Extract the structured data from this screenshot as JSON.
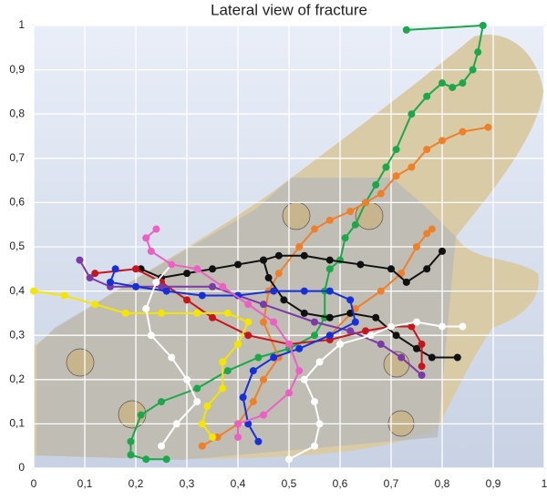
{
  "chart_data": {
    "type": "line",
    "title": "Lateral view of fracture",
    "xlim": [
      0,
      1
    ],
    "ylim": [
      0,
      1
    ],
    "grid": true,
    "xticks": [
      0,
      {
        "value": 0.1,
        "label": "0,1"
      },
      {
        "value": 0.2,
        "label": "0,2"
      },
      {
        "value": 0.3,
        "label": "0,3"
      },
      {
        "value": 0.4,
        "label": "0,4"
      },
      {
        "value": 0.5,
        "label": "0,5"
      },
      {
        "value": 0.6,
        "label": "0,6"
      },
      {
        "value": 0.7,
        "label": "0,7"
      },
      {
        "value": 0.8,
        "label": "0,8"
      },
      {
        "value": 0.9,
        "label": "0,9"
      },
      1
    ],
    "yticks": [
      0,
      {
        "value": 0.1,
        "label": "0,1"
      },
      {
        "value": 0.2,
        "label": "0,2"
      },
      {
        "value": 0.3,
        "label": "0,3"
      },
      {
        "value": 0.4,
        "label": "0,4"
      },
      {
        "value": 0.5,
        "label": "0,5"
      },
      {
        "value": 0.6,
        "label": "0,6"
      },
      {
        "value": 0.7,
        "label": "0,7"
      },
      {
        "value": 0.8,
        "label": "0,8"
      },
      {
        "value": 0.9,
        "label": "0,9"
      },
      1
    ],
    "series": [
      {
        "color": "#1aa84a",
        "x": [
          0.73,
          0.88,
          0.87,
          0.86,
          0.84,
          0.82,
          0.8,
          0.77,
          0.74,
          0.71,
          0.69,
          0.67,
          0.65,
          0.63,
          0.61,
          0.6,
          0.58,
          0.57,
          0.57,
          0.55,
          0.5,
          0.44,
          0.38,
          0.32,
          0.25,
          0.21,
          0.19,
          0.19,
          0.22,
          0.26
        ],
        "values": [
          0.99,
          1.0,
          0.94,
          0.9,
          0.87,
          0.86,
          0.87,
          0.84,
          0.8,
          0.72,
          0.68,
          0.64,
          0.6,
          0.55,
          0.52,
          0.47,
          0.45,
          0.4,
          0.34,
          0.3,
          0.27,
          0.25,
          0.22,
          0.18,
          0.15,
          0.12,
          0.06,
          0.03,
          0.02,
          0.02
        ]
      },
      {
        "color": "#f07f2a",
        "x": [
          0.89,
          0.84,
          0.8,
          0.77,
          0.74,
          0.71,
          0.68,
          0.65,
          0.62,
          0.58,
          0.55,
          0.52,
          0.48,
          0.46,
          0.45,
          0.48,
          0.45,
          0.43,
          0.4,
          0.36,
          0.33
        ],
        "values": [
          0.77,
          0.76,
          0.74,
          0.72,
          0.68,
          0.66,
          0.62,
          0.6,
          0.58,
          0.56,
          0.54,
          0.5,
          0.44,
          0.4,
          0.33,
          0.25,
          0.2,
          0.15,
          0.1,
          0.07,
          0.05
        ]
      },
      {
        "color": "#f07f2a",
        "x": [
          0.78,
          0.77,
          0.75,
          0.72,
          0.68,
          0.63,
          0.58
        ],
        "values": [
          0.54,
          0.53,
          0.5,
          0.44,
          0.4,
          0.36,
          0.3
        ]
      },
      {
        "color": "#111111",
        "x": [
          0.83,
          0.78,
          0.75,
          0.71,
          0.67,
          0.62,
          0.58,
          0.53,
          0.49,
          0.46,
          0.45,
          0.48,
          0.53,
          0.58,
          0.64,
          0.7,
          0.73,
          0.77,
          0.8
        ],
        "values": [
          0.25,
          0.25,
          0.27,
          0.3,
          0.34,
          0.35,
          0.34,
          0.35,
          0.38,
          0.43,
          0.47,
          0.48,
          0.48,
          0.47,
          0.46,
          0.45,
          0.42,
          0.45,
          0.49
        ]
      },
      {
        "color": "#111111",
        "x": [
          0.45,
          0.4,
          0.35,
          0.3,
          0.25,
          0.21
        ],
        "values": [
          0.47,
          0.46,
          0.45,
          0.44,
          0.43,
          0.45
        ]
      },
      {
        "color": "#c8151b",
        "x": [
          0.12,
          0.2,
          0.25,
          0.3,
          0.35,
          0.42,
          0.5,
          0.58,
          0.65,
          0.7,
          0.74,
          0.76,
          0.76
        ],
        "values": [
          0.44,
          0.45,
          0.42,
          0.38,
          0.34,
          0.3,
          0.28,
          0.29,
          0.31,
          0.32,
          0.32,
          0.28,
          0.23
        ]
      },
      {
        "color": "#7b3aa6",
        "x": [
          0.09,
          0.11,
          0.15,
          0.25,
          0.35,
          0.45,
          0.55,
          0.62,
          0.68,
          0.72,
          0.76
        ],
        "values": [
          0.47,
          0.43,
          0.41,
          0.41,
          0.41,
          0.37,
          0.33,
          0.31,
          0.28,
          0.25,
          0.21
        ]
      },
      {
        "color": "#1530d8",
        "x": [
          0.16,
          0.15,
          0.2,
          0.26,
          0.33,
          0.4,
          0.47,
          0.53,
          0.58,
          0.62,
          0.63,
          0.58,
          0.52,
          0.47,
          0.43,
          0.41,
          0.42,
          0.44
        ],
        "values": [
          0.45,
          0.42,
          0.41,
          0.4,
          0.39,
          0.39,
          0.4,
          0.4,
          0.4,
          0.38,
          0.33,
          0.3,
          0.27,
          0.25,
          0.22,
          0.16,
          0.1,
          0.06
        ]
      },
      {
        "color": "#f5e600",
        "x": [
          0.0,
          0.06,
          0.12,
          0.18,
          0.25,
          0.32,
          0.38,
          0.42,
          0.4,
          0.37,
          0.37,
          0.34,
          0.33,
          0.35
        ],
        "values": [
          0.4,
          0.39,
          0.37,
          0.35,
          0.35,
          0.35,
          0.35,
          0.33,
          0.28,
          0.24,
          0.18,
          0.14,
          0.1,
          0.07
        ]
      },
      {
        "color": "#ffffff",
        "x": [
          0.84,
          0.8,
          0.75,
          0.7,
          0.66,
          0.6,
          0.56,
          0.53,
          0.55,
          0.56,
          0.55,
          0.5
        ],
        "values": [
          0.32,
          0.32,
          0.33,
          0.32,
          0.3,
          0.28,
          0.24,
          0.2,
          0.15,
          0.1,
          0.05,
          0.02
        ]
      },
      {
        "color": "#ffffff",
        "x": [
          0.27,
          0.24,
          0.22,
          0.23,
          0.27,
          0.3,
          0.32,
          0.28,
          0.25
        ],
        "values": [
          0.46,
          0.42,
          0.36,
          0.3,
          0.25,
          0.2,
          0.15,
          0.1,
          0.05
        ]
      },
      {
        "color": "#ee5fc4",
        "x": [
          0.24,
          0.22,
          0.23,
          0.27,
          0.32,
          0.37,
          0.42,
          0.47,
          0.5,
          0.52,
          0.5,
          0.45,
          0.4,
          0.4
        ],
        "values": [
          0.54,
          0.52,
          0.49,
          0.46,
          0.45,
          0.41,
          0.37,
          0.33,
          0.28,
          0.22,
          0.17,
          0.12,
          0.1,
          0.07
        ]
      }
    ]
  }
}
